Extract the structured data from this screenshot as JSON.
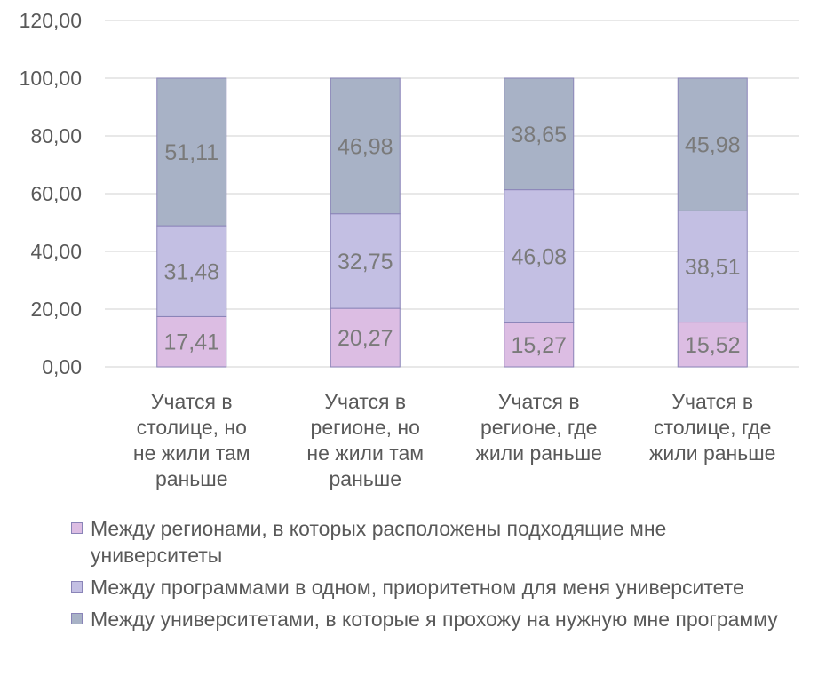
{
  "chart_data": {
    "type": "bar",
    "stacked": true,
    "categories": [
      "Учатся в столице, но не жили там раньше",
      "Учатся в регионе, но не жили там раньше",
      "Учатся в регионе, где жили раньше",
      "Учатся в столице, где жили раньше"
    ],
    "series": [
      {
        "name": "Между регионами, в которых расположены подходящие мне университеты",
        "values": [
          17.41,
          20.27,
          15.27,
          15.52
        ],
        "color": "#dcbde3",
        "labels": [
          "17,41",
          "20,27",
          "15,27",
          "15,52"
        ]
      },
      {
        "name": "Между программами в одном, приоритетном для меня университете",
        "values": [
          31.48,
          32.75,
          46.08,
          38.51
        ],
        "color": "#c3bfe3",
        "labels": [
          "31,48",
          "32,75",
          "46,08",
          "38,51"
        ]
      },
      {
        "name": "Между университетами, в которые я прохожу на нужную мне программу",
        "values": [
          51.11,
          46.98,
          38.65,
          45.98
        ],
        "color": "#a8b2c6",
        "labels": [
          "51,11",
          "46,98",
          "38,65",
          "45,98"
        ]
      }
    ],
    "ylim": [
      0,
      120
    ],
    "yticks": [
      "0,00",
      "20,00",
      "40,00",
      "60,00",
      "80,00",
      "100,00",
      "120,00"
    ],
    "grid": true,
    "legend_position": "bottom",
    "title": "",
    "xlabel": "",
    "ylabel": ""
  },
  "legend": {
    "items": [
      "Между регионами, в которых расположены подходящие мне университеты",
      "Между программами в одном, приоритетном для меня университете",
      "Между университетами, в которые я прохожу на нужную мне программу"
    ]
  },
  "colors": {
    "grid": "#d9d9d9",
    "text": "#595959",
    "bar_border": "#8a84b8",
    "label": "#7a7a7a"
  }
}
